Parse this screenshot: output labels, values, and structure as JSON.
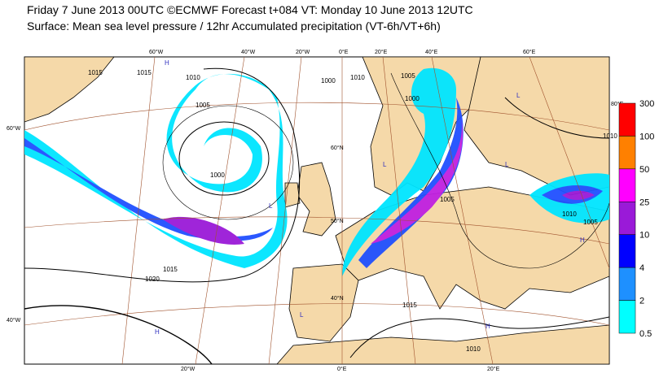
{
  "header": {
    "line1": "Friday 7 June 2013 00UTC ©ECMWF Forecast t+084 VT: Monday 10 June 2013 12UTC",
    "line2": "Surface: Mean sea level pressure / 12hr Accumulated precipitation (VT-6h/VT+6h)"
  },
  "map": {
    "graticule_labels": [
      "60°W",
      "40°W",
      "20°W",
      "0°E",
      "20°E",
      "40°E",
      "60°E",
      "60°W",
      "40°W",
      "20°W",
      "0°E",
      "20°E",
      "60°N",
      "50°N",
      "40°N",
      "80°E"
    ],
    "isobar_labels": [
      "1015",
      "1015",
      "1010",
      "1005",
      "1000",
      "1015",
      "1020",
      "1000",
      "1010",
      "1005",
      "1000",
      "1005",
      "1010",
      "1005",
      "1010",
      "1015",
      "1010"
    ],
    "pressure_centers": [
      "H",
      "L",
      "H",
      "L",
      "L",
      "H",
      "L",
      "H",
      "L"
    ]
  },
  "legend": {
    "labels": [
      "300",
      "100",
      "50",
      "25",
      "10",
      "4",
      "2",
      "0.5"
    ],
    "colors": [
      "#ff0000",
      "#ff8000",
      "#ff00ff",
      "#9a1ad8",
      "#0000ff",
      "#1e90ff",
      "#00ffff"
    ]
  }
}
